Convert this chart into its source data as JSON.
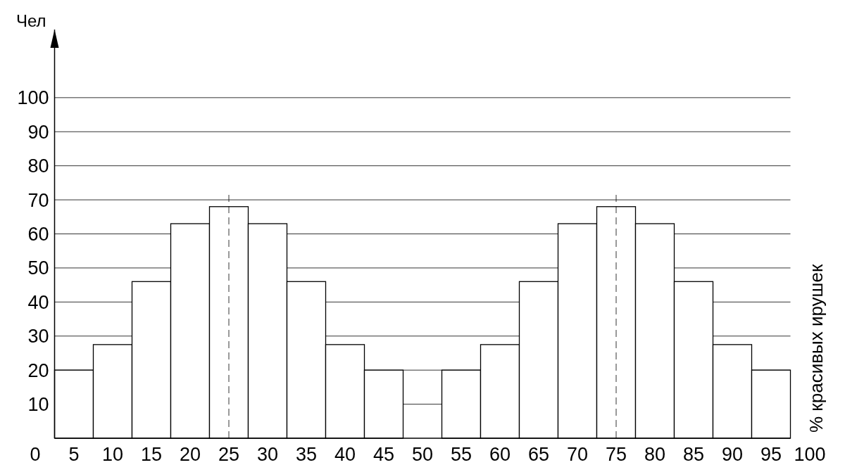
{
  "chart_data": {
    "type": "histogram",
    "ylabel": "Чел",
    "y2label": "% красивых ирушек",
    "bins": [
      2.5,
      7.5,
      12.5,
      17.5,
      22.5,
      27.5,
      32.5,
      37.5,
      42.5,
      47.5,
      52.5,
      57.5,
      62.5,
      67.5,
      72.5,
      77.5,
      82.5,
      87.5,
      92.5,
      97.5
    ],
    "values": [
      20,
      27.5,
      46,
      63,
      68,
      63,
      46,
      27.5,
      20,
      0,
      20,
      27.5,
      46,
      63,
      68,
      63,
      46,
      27.5,
      20
    ],
    "color": "#ffffff",
    "xlim": [
      0,
      100
    ],
    "xticks": [
      0,
      5,
      10,
      15,
      20,
      25,
      30,
      35,
      40,
      45,
      50,
      55,
      60,
      65,
      70,
      75,
      80,
      85,
      90,
      95,
      100
    ],
    "ylim": [
      0,
      120
    ],
    "yticks": [
      10,
      20,
      30,
      40,
      50,
      60,
      70,
      80,
      90,
      100
    ],
    "grid": "y",
    "ref_lines": [
      {
        "axis": "x",
        "value": 25,
        "color": "#000000",
        "line_style": "dashed"
      },
      {
        "axis": "x",
        "value": 75,
        "color": "#000000",
        "line_style": "dashed"
      }
    ]
  }
}
